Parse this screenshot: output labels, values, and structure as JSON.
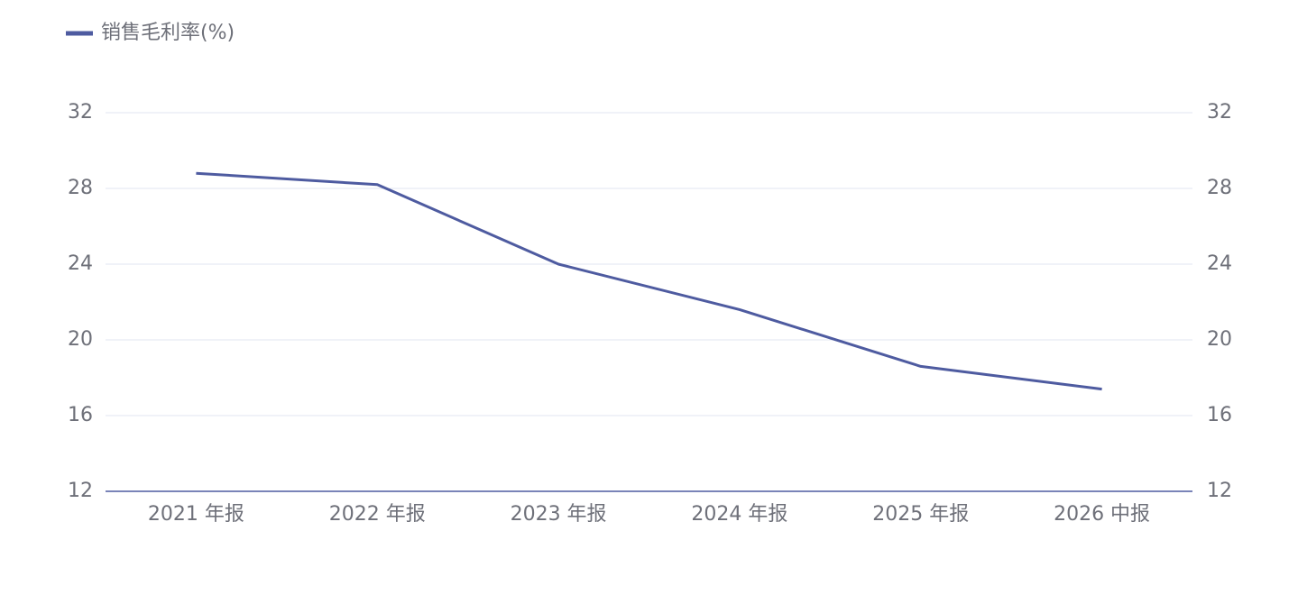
{
  "chart_data": {
    "type": "line",
    "categories": [
      "2021 年报",
      "2022 年报",
      "2023 年报",
      "2024 年报",
      "2025 年报",
      "2026 中报"
    ],
    "series": [
      {
        "name": "销售毛利率(%)",
        "color": "#4e5ba0",
        "values": [
          28.8,
          28.2,
          24.0,
          21.6,
          18.6,
          17.4
        ]
      }
    ],
    "ylim": [
      12,
      32
    ],
    "yticks": [
      12,
      16,
      20,
      24,
      28,
      32
    ],
    "y2lim": [
      12,
      32
    ],
    "y2ticks": [
      12,
      16,
      20,
      24,
      28,
      32
    ],
    "grid": true,
    "legend": "top-left"
  }
}
